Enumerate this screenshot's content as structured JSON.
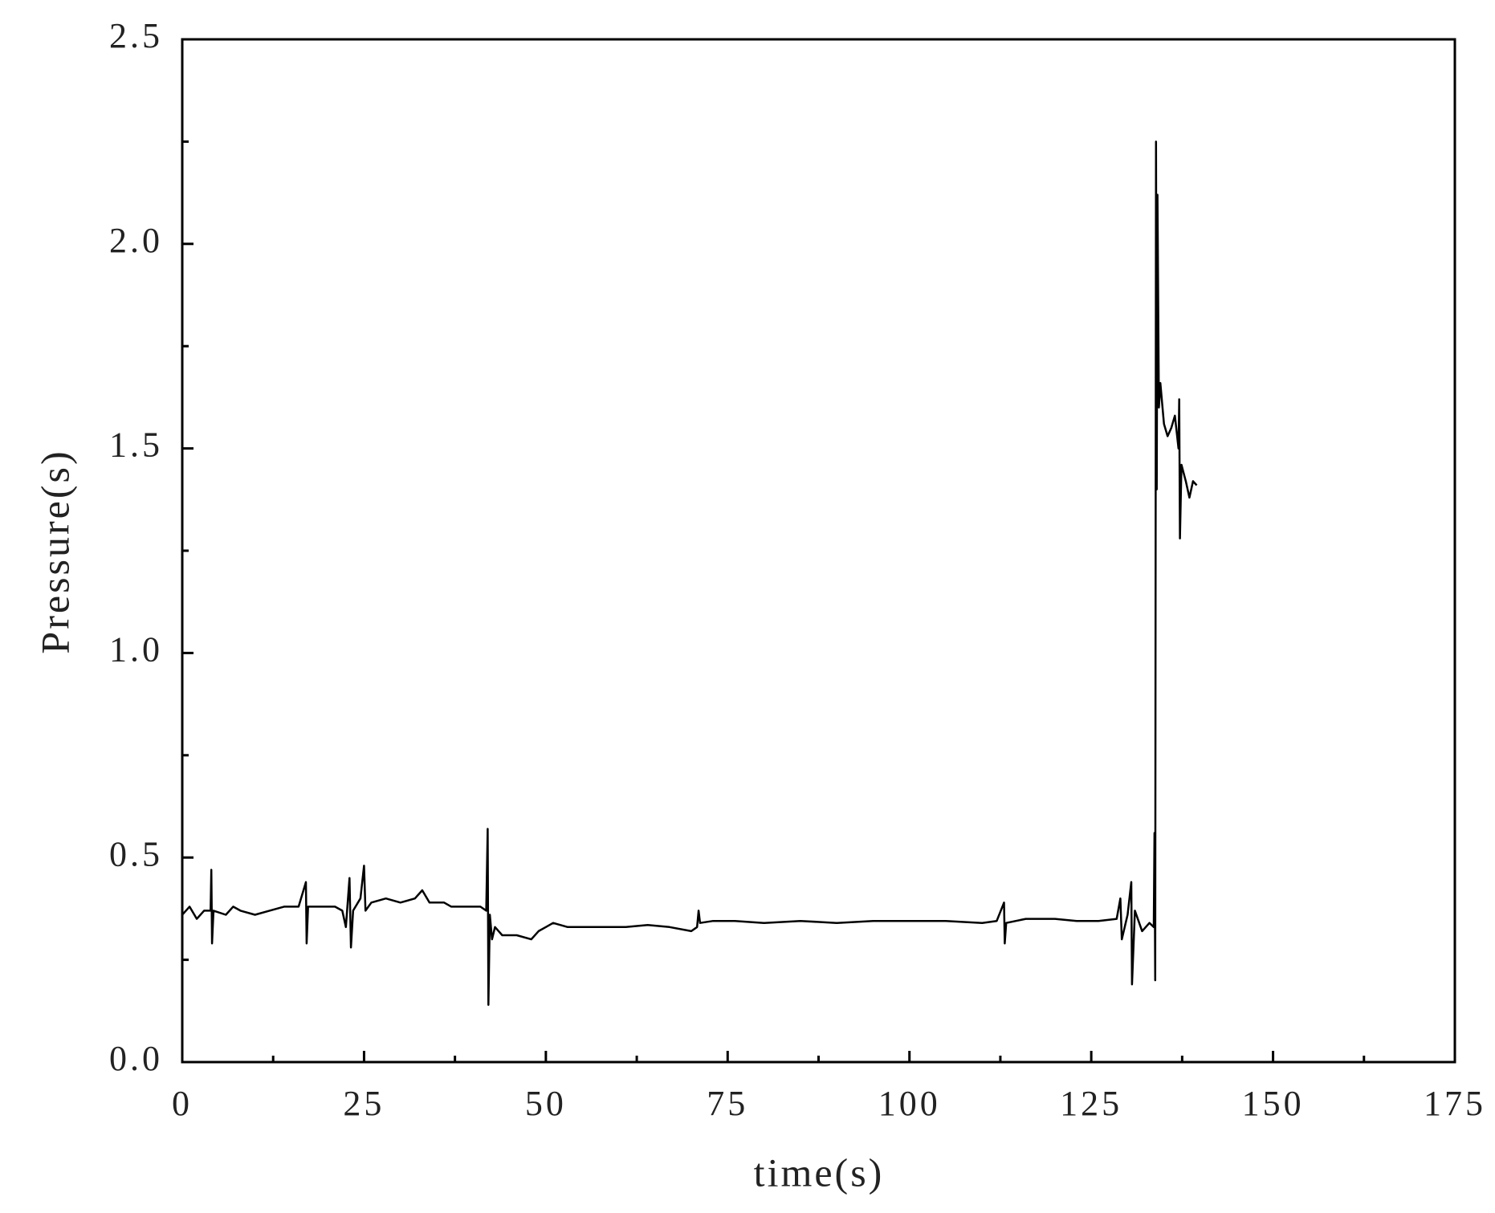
{
  "chart_data": {
    "type": "line",
    "x_label": "time(s)",
    "y_label": "Pressure(s)",
    "xlim": [
      0,
      175
    ],
    "xticks": [
      0,
      25,
      50,
      75,
      100,
      125,
      150,
      175
    ],
    "ylim": [
      0,
      2.5
    ],
    "yticks": [
      {
        "value": 0,
        "label": "0.0"
      },
      0.5,
      {
        "value": 1,
        "label": "1.0"
      },
      1.5,
      {
        "value": 2,
        "label": "2.0"
      },
      2.5
    ],
    "grid": false,
    "series": [
      {
        "color": "#000000",
        "x": [
          0,
          1,
          2,
          3,
          3.9,
          4,
          4.1,
          4.3,
          6,
          7,
          8,
          10,
          12,
          14,
          16,
          17,
          17.1,
          17.3,
          19,
          21,
          22,
          22.5,
          23,
          23.2,
          23.5,
          24.5,
          25,
          25.2,
          26,
          28,
          30,
          32,
          33,
          34,
          36,
          37,
          39,
          41,
          41.8,
          42,
          42.1,
          42.3,
          42.6,
          43,
          44,
          46,
          48,
          49,
          50,
          51,
          53,
          55,
          58,
          61,
          64,
          67,
          70,
          70.8,
          71,
          71.2,
          73,
          76,
          80,
          85,
          90,
          95,
          100,
          105,
          110,
          112,
          113,
          113.1,
          113.3,
          116,
          118,
          120,
          123,
          126,
          128.5,
          129,
          129.2,
          130,
          130.5,
          130.6,
          131,
          132,
          133,
          133.6,
          133.7,
          133.8,
          133.9,
          134,
          134.1,
          134.3,
          134.5,
          135,
          135.5,
          136,
          136.5,
          137,
          137.1,
          137.2,
          137.4,
          138,
          138.5,
          139,
          139.5
        ],
        "values": [
          0.36,
          0.38,
          0.35,
          0.37,
          0.37,
          0.47,
          0.29,
          0.37,
          0.36,
          0.38,
          0.37,
          0.36,
          0.37,
          0.38,
          0.38,
          0.44,
          0.29,
          0.38,
          0.38,
          0.38,
          0.37,
          0.33,
          0.45,
          0.28,
          0.37,
          0.4,
          0.48,
          0.37,
          0.39,
          0.4,
          0.39,
          0.4,
          0.42,
          0.39,
          0.39,
          0.38,
          0.38,
          0.38,
          0.37,
          0.57,
          0.14,
          0.36,
          0.3,
          0.33,
          0.31,
          0.31,
          0.3,
          0.32,
          0.33,
          0.34,
          0.33,
          0.33,
          0.33,
          0.33,
          0.335,
          0.33,
          0.32,
          0.33,
          0.37,
          0.34,
          0.345,
          0.345,
          0.34,
          0.345,
          0.34,
          0.345,
          0.345,
          0.345,
          0.34,
          0.345,
          0.39,
          0.29,
          0.34,
          0.35,
          0.35,
          0.35,
          0.345,
          0.345,
          0.35,
          0.4,
          0.3,
          0.36,
          0.44,
          0.19,
          0.37,
          0.32,
          0.34,
          0.33,
          0.56,
          0.2,
          2.25,
          1.4,
          2.12,
          1.6,
          1.66,
          1.56,
          1.53,
          1.55,
          1.58,
          1.5,
          1.62,
          1.28,
          1.46,
          1.42,
          1.38,
          1.42,
          1.41
        ]
      }
    ]
  }
}
